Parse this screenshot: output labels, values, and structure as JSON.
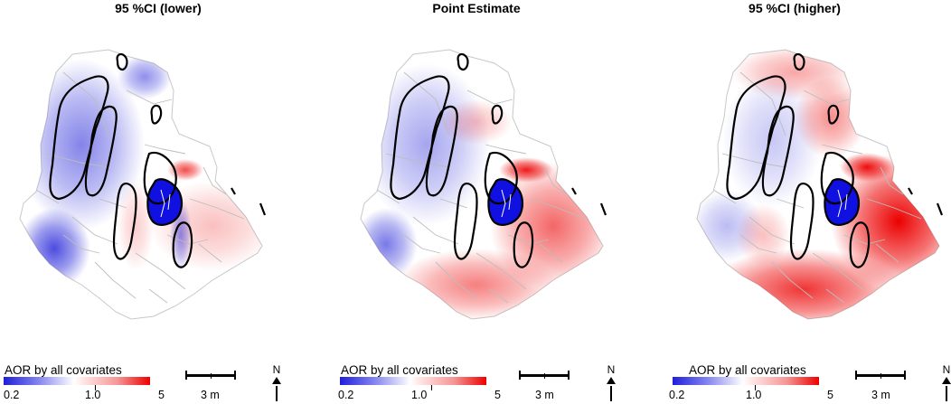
{
  "panels": [
    {
      "title": "95 %CI (lower)",
      "variant": "lower"
    },
    {
      "title": "Point Estimate",
      "variant": "point"
    },
    {
      "title": "95 %CI (higher)",
      "variant": "higher"
    }
  ],
  "legend": {
    "title": "AOR by all covariates",
    "ticks": [
      "0.2",
      "1.0",
      "5"
    ],
    "colors": {
      "low": "#1f1fd8",
      "mid": "#ffffff",
      "high": "#ec0000"
    }
  },
  "scale_bar": {
    "label": "3 m"
  },
  "north_arrow": {
    "label": "N"
  }
}
